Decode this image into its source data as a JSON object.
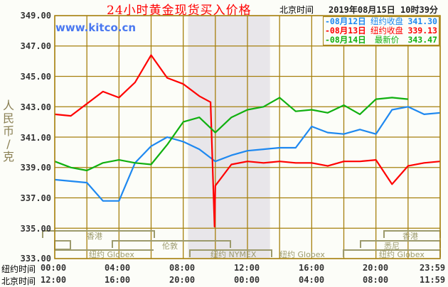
{
  "header": {
    "title": "24小时黄金现货买入价格",
    "timezone_label": "北京时间",
    "datetime": "2019年08月15日 10时39分",
    "watermark": "www.kitco.cn"
  },
  "legend": [
    {
      "date": "-08月12日",
      "label": "纽约收盘",
      "value": "341.30",
      "color": "#1e88f0"
    },
    {
      "date": "-08月13日",
      "label": "纽约收盘",
      "value": "339.13",
      "color": "#ff0000"
    },
    {
      "date": "-08月14日",
      "label": "最新价",
      "value": "343.47",
      "color": "#10b010"
    }
  ],
  "axis": {
    "ylabel": [
      "人",
      "民",
      "币",
      "/",
      "克"
    ],
    "yticks": [
      "349.00",
      "347.00",
      "345.00",
      "343.00",
      "341.00",
      "339.00",
      "337.00",
      "335.00",
      "333.00"
    ],
    "ny_label": "纽约时间",
    "bj_label": "北京时间",
    "ny_ticks": [
      "00:00",
      "04:00",
      "08:00",
      "12:00",
      "16:00",
      "20:00",
      "23:59"
    ],
    "bj_ticks": [
      "12:00",
      "16:00",
      "20:00",
      "00:00",
      "04:00",
      "08:00",
      "11:59"
    ]
  },
  "sessions": {
    "hongkong": "香港",
    "london": "伦敦",
    "globex": "纽约 Globex",
    "nymex": "纽约 NYMEX",
    "sydney": "悉尼"
  },
  "chart_data": {
    "type": "line",
    "title": "24小时黄金现货买入价格",
    "xlabel": "纽约时间 / 北京时间",
    "ylabel": "人民币/克",
    "ylim": [
      333,
      349
    ],
    "grid": true,
    "legend_position": "top-right",
    "x_hours_ny": [
      0,
      1,
      2,
      3,
      4,
      5,
      6,
      7,
      8,
      9,
      10,
      11,
      12,
      13,
      14,
      15,
      16,
      17,
      18,
      19,
      20,
      21,
      22,
      23,
      24
    ],
    "series": [
      {
        "name": "08月12日 纽约收盘 341.30",
        "color": "#1e88f0",
        "values": [
          338.2,
          338.1,
          338.0,
          336.8,
          336.8,
          339.3,
          340.4,
          341.0,
          340.7,
          340.2,
          339.4,
          339.8,
          340.1,
          340.2,
          340.3,
          340.3,
          341.7,
          341.3,
          341.2,
          341.5,
          341.2,
          342.8,
          343.0,
          342.5,
          342.6
        ]
      },
      {
        "name": "08月13日 纽约收盘 339.13",
        "color": "#ff0000",
        "values": [
          342.5,
          342.4,
          343.2,
          344.0,
          343.6,
          344.6,
          346.4,
          344.9,
          344.5,
          343.7,
          337.8,
          339.2,
          339.4,
          339.3,
          339.4,
          339.3,
          339.3,
          339.1,
          339.4,
          339.4,
          339.5,
          337.9,
          339.1,
          339.3,
          339.4
        ]
      },
      {
        "name": "08月14日 最新价 343.47",
        "color": "#10b010",
        "values": [
          339.4,
          339.0,
          338.8,
          339.3,
          339.5,
          339.3,
          339.2,
          340.5,
          342.0,
          342.3,
          341.3,
          342.3,
          342.8,
          343.0,
          343.6,
          342.7,
          342.8,
          342.6,
          343.1,
          342.5,
          343.5,
          343.6,
          343.5,
          null,
          null
        ]
      }
    ]
  }
}
